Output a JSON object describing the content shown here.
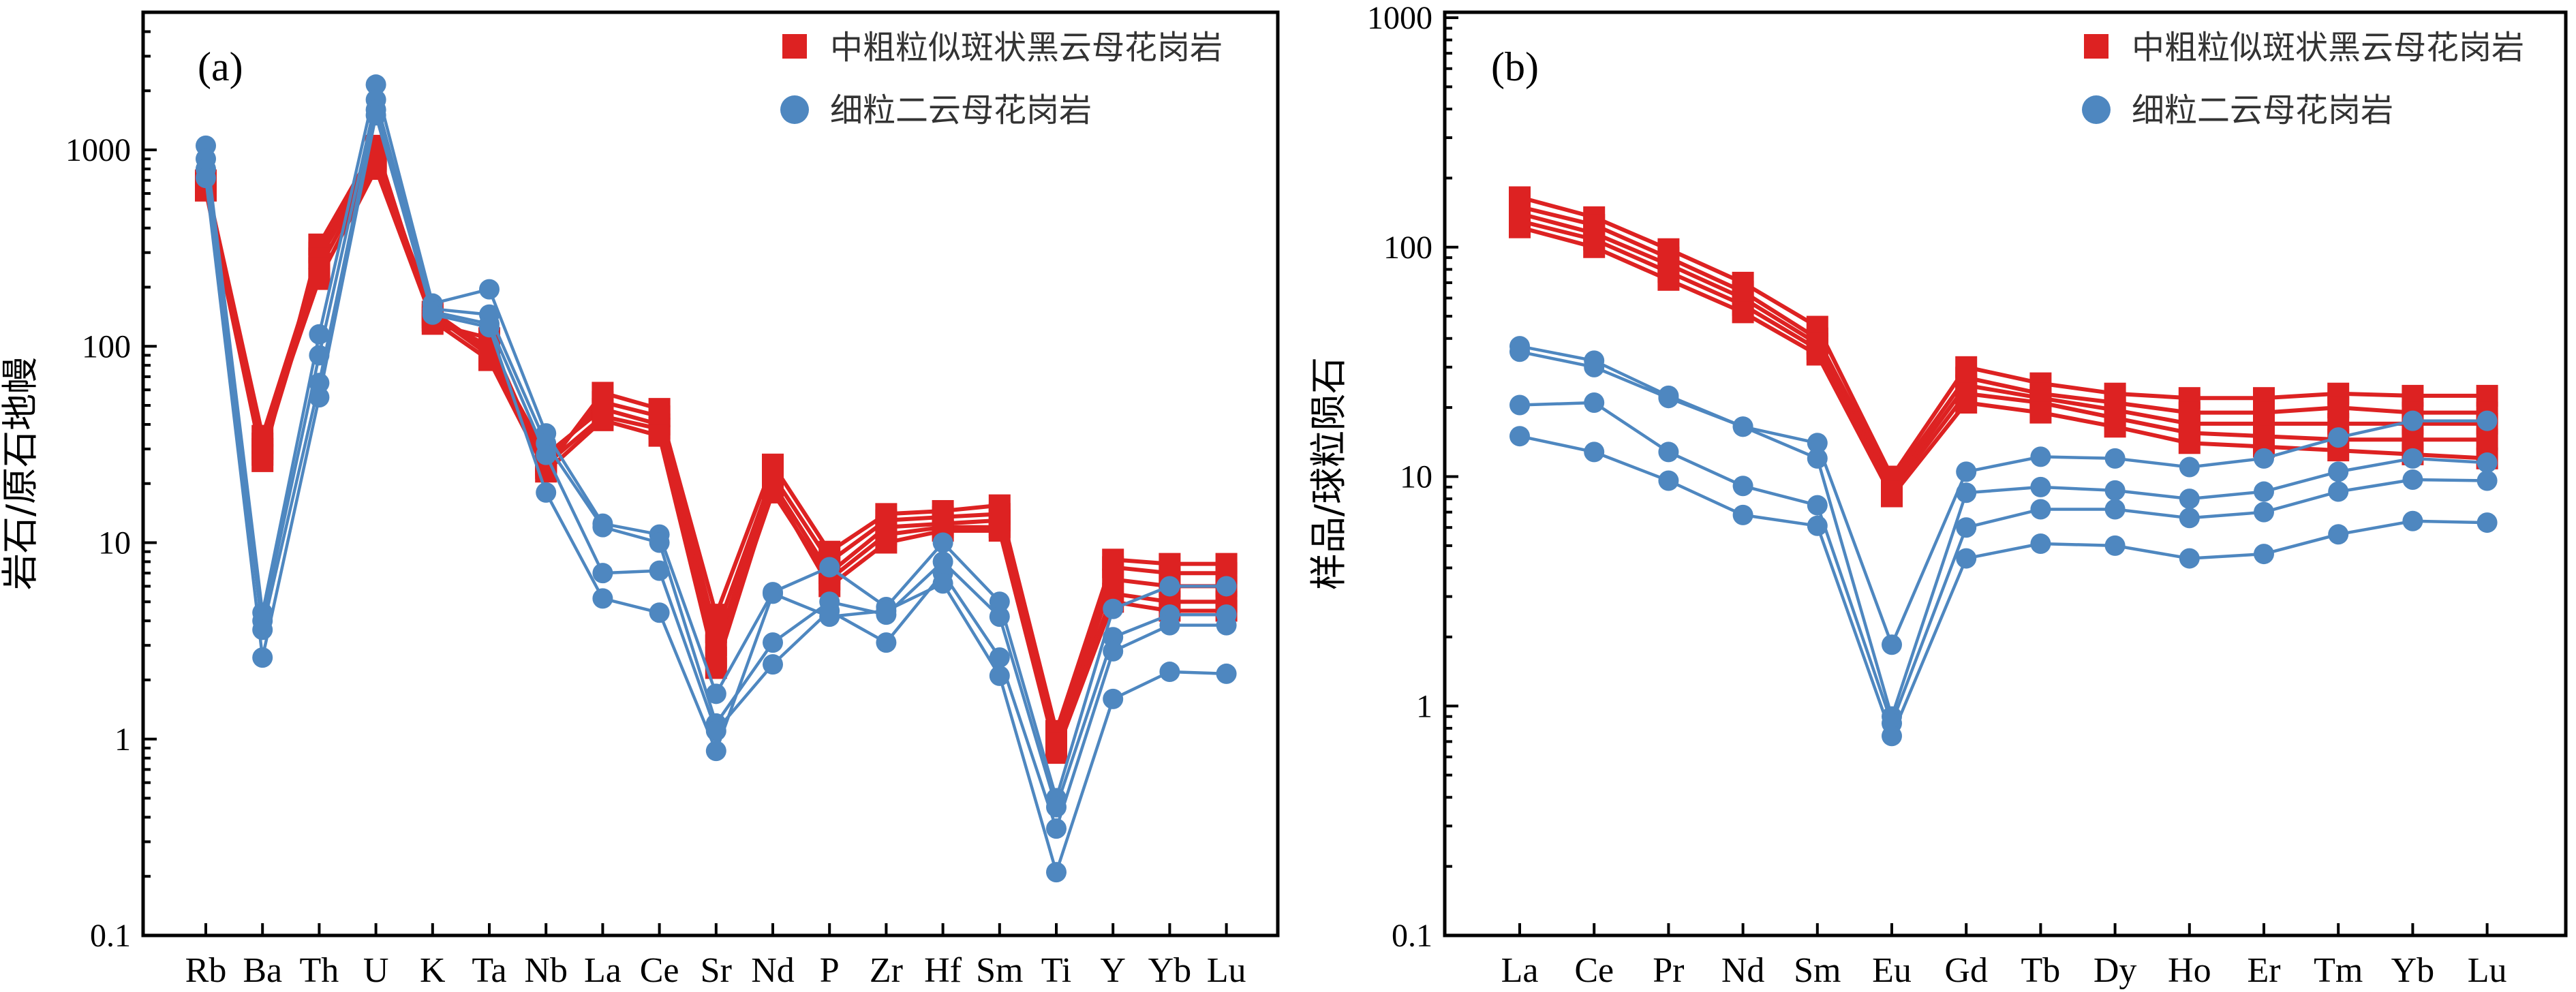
{
  "colors": {
    "red": "#dd2222",
    "blue": "#4e87c0",
    "axis": "#000000"
  },
  "chart_data": [
    {
      "type": "line",
      "panel_label": "(a)",
      "ylabel": "岩石/原石地幔",
      "yscale": "log",
      "ylim": [
        0.1,
        5000
      ],
      "yticks": [
        {
          "value": 0.1,
          "label": "0.1"
        },
        {
          "value": 1,
          "label": "1"
        },
        {
          "value": 10,
          "label": "10"
        },
        {
          "value": 100,
          "label": "100"
        },
        {
          "value": 1000,
          "label": "1000"
        }
      ],
      "categories": [
        "Rb",
        "Ba",
        "Th",
        "U",
        "K",
        "Ta",
        "Nb",
        "La",
        "Ce",
        "Sr",
        "Nd",
        "P",
        "Zr",
        "Hf",
        "Sm",
        "Ti",
        "Y",
        "Yb",
        "Lu"
      ],
      "legend": {
        "position": "top-right",
        "entries": [
          "中粗粒似斑状黑云母花岗岩",
          "细粒二云母花岗岩"
        ]
      },
      "groups": [
        {
          "name": "中粗粒似斑状黑云母花岗岩",
          "color": "red",
          "marker": "square",
          "series": [
            {
              "values": [
                620,
                26,
                330,
                1050,
                130,
                110,
                24,
                58,
                48,
                4.3,
                25,
                9.0,
                14,
                14.5,
                15.5,
                1.1,
                8.2,
                7.8,
                7.8
              ]
            },
            {
              "values": [
                660,
                30,
                300,
                980,
                140,
                100,
                26,
                52,
                44,
                3.5,
                22,
                8.0,
                13,
                13.5,
                14,
                1.0,
                7.5,
                7.0,
                7.0
              ]
            },
            {
              "values": [
                700,
                35,
                280,
                900,
                150,
                95,
                28,
                48,
                40,
                3.0,
                20,
                7.0,
                12,
                12.5,
                13,
                0.95,
                6.5,
                6.0,
                6.0
              ]
            },
            {
              "values": [
                640,
                28,
                250,
                850,
                145,
                90,
                25,
                44,
                38,
                2.6,
                18,
                6.5,
                11,
                12,
                12,
                0.9,
                5.5,
                5.0,
                5.0
              ]
            },
            {
              "values": [
                680,
                32,
                220,
                800,
                135,
                85,
                23,
                42,
                35,
                2.3,
                19,
                6.0,
                10,
                11.5,
                11.5,
                0.85,
                5.0,
                4.5,
                4.5
              ]
            }
          ]
        },
        {
          "name": "细粒二云母花岗岩",
          "color": "blue",
          "marker": "circle",
          "series": [
            {
              "values": [
                1050,
                4.4,
                115,
                2150,
                165,
                195,
                36,
                12.5,
                11,
                1.7,
                5.6,
                7.5,
                4.7,
                10,
                5.0,
                0.5,
                4.6,
                6.0,
                6.0
              ]
            },
            {
              "values": [
                900,
                4.0,
                90,
                1800,
                155,
                145,
                32,
                12,
                10,
                1.2,
                3.1,
                5.0,
                4.3,
                8,
                4.2,
                0.45,
                3.3,
                4.3,
                4.3
              ]
            },
            {
              "values": [
                800,
                3.6,
                65,
                1600,
                150,
                130,
                28,
                7.0,
                7.2,
                1.1,
                2.4,
                4.5,
                3.1,
                7,
                2.6,
                0.35,
                2.8,
                3.8,
                3.8
              ]
            },
            {
              "values": [
                720,
                2.6,
                55,
                1500,
                145,
                125,
                18,
                5.2,
                4.4,
                0.87,
                5.5,
                4.2,
                4.5,
                6.2,
                2.1,
                0.21,
                1.6,
                2.2,
                2.15
              ]
            }
          ]
        }
      ]
    },
    {
      "type": "line",
      "panel_label": "(b)",
      "ylabel": "样品/球粒陨石",
      "yscale": "log",
      "ylim": [
        0.1,
        1000
      ],
      "yticks": [
        {
          "value": 0.1,
          "label": "0.1"
        },
        {
          "value": 1,
          "label": "1"
        },
        {
          "value": 10,
          "label": "10"
        },
        {
          "value": 100,
          "label": "100"
        },
        {
          "value": 1000,
          "label": "1000"
        }
      ],
      "categories": [
        "La",
        "Ce",
        "Pr",
        "Nd",
        "Sm",
        "Eu",
        "Gd",
        "Tb",
        "Dy",
        "Ho",
        "Er",
        "Tm",
        "Yb",
        "Lu"
      ],
      "legend": {
        "position": "top-right",
        "entries": [
          "中粗粒似斑状黑云母花岗岩",
          "细粒二云母花岗岩"
        ]
      },
      "groups": [
        {
          "name": "中粗粒似斑状黑云母花岗岩",
          "color": "red",
          "marker": "square",
          "series": [
            {
              "values": [
                165,
                135,
                98,
                70,
                45,
                10,
                30,
                25.5,
                23,
                22,
                22,
                23,
                22.5,
                22.5
              ]
            },
            {
              "values": [
                150,
                125,
                90,
                64,
                40,
                9.5,
                27,
                23,
                21,
                19,
                19,
                20,
                19,
                19
              ]
            },
            {
              "values": [
                140,
                115,
                84,
                60,
                38,
                9.0,
                25,
                22,
                19.5,
                17,
                17,
                17,
                17,
                17
              ]
            },
            {
              "values": [
                130,
                108,
                78,
                56,
                36,
                8.6,
                23,
                21,
                18,
                15.5,
                15,
                14.5,
                14.5,
                14.5
              ]
            },
            {
              "values": [
                122,
                100,
                72,
                52,
                34,
                8.2,
                21,
                19,
                16.5,
                14,
                13.5,
                13,
                12.5,
                12
              ]
            }
          ]
        },
        {
          "name": "细粒二云母花岗岩",
          "color": "blue",
          "marker": "circle",
          "series": [
            {
              "values": [
                37,
                32,
                22.5,
                16.5,
                14,
                1.85,
                10.5,
                12.2,
                12,
                11,
                12.0,
                14.8,
                17.5,
                17.5
              ]
            },
            {
              "values": [
                35,
                30,
                22,
                16.5,
                12,
                0.9,
                8.5,
                9.0,
                8.7,
                8.0,
                8.6,
                10.5,
                12.0,
                11.5
              ]
            },
            {
              "values": [
                20.5,
                21,
                12.8,
                9.1,
                7.5,
                0.84,
                6.0,
                7.2,
                7.2,
                6.6,
                7.0,
                8.6,
                9.7,
                9.6
              ]
            },
            {
              "values": [
                15,
                12.8,
                9.6,
                6.8,
                6.1,
                0.74,
                4.4,
                5.1,
                5.0,
                4.4,
                4.6,
                5.6,
                6.4,
                6.3
              ]
            }
          ]
        }
      ]
    }
  ]
}
